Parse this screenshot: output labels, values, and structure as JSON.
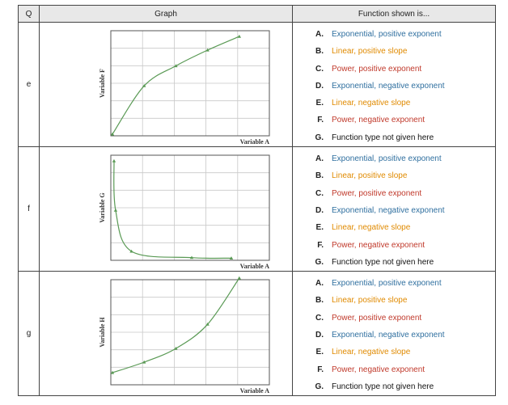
{
  "header": {
    "q": "Q",
    "graph": "Graph",
    "function": "Function shown is..."
  },
  "rows": [
    {
      "q": "e",
      "y_label": "Variable F",
      "x_label": "Variable A",
      "points": [
        [
          0,
          0
        ],
        [
          1,
          0.46
        ],
        [
          2,
          0.65
        ],
        [
          3,
          0.8
        ],
        [
          4,
          0.93
        ]
      ]
    },
    {
      "q": "f",
      "y_label": "Variable G",
      "x_label": "Variable A",
      "points": [
        [
          0.05,
          0.93
        ],
        [
          0.1,
          0.46
        ],
        [
          0.6,
          0.07
        ],
        [
          2.5,
          0.01
        ],
        [
          3.75,
          0.005
        ]
      ]
    },
    {
      "q": "g",
      "y_label": "Variable H",
      "x_label": "Variable A",
      "points": [
        [
          0,
          0.1
        ],
        [
          1,
          0.2
        ],
        [
          2,
          0.33
        ],
        [
          3,
          0.56
        ],
        [
          4,
          1.0
        ]
      ]
    }
  ],
  "options": [
    {
      "letter": "A.",
      "text": "Exponential, positive exponent",
      "color": "#2f6f9f"
    },
    {
      "letter": "B.",
      "text": "Linear, positive slope",
      "color": "#e08a00"
    },
    {
      "letter": "C.",
      "text": "Power, positive exponent",
      "color": "#c0392b"
    },
    {
      "letter": "D.",
      "text": "Exponential, negative exponent",
      "color": "#2f6f9f"
    },
    {
      "letter": "E.",
      "text": "Linear, negative slope",
      "color": "#e08a00"
    },
    {
      "letter": "F.",
      "text": "Power, negative exponent",
      "color": "#c0392b"
    },
    {
      "letter": "G.",
      "text": "Function type not given here",
      "color": "#111111"
    }
  ],
  "colors": {
    "curve": "#5a9a55",
    "grid": "#c8c8c8",
    "axes": "#555555"
  }
}
